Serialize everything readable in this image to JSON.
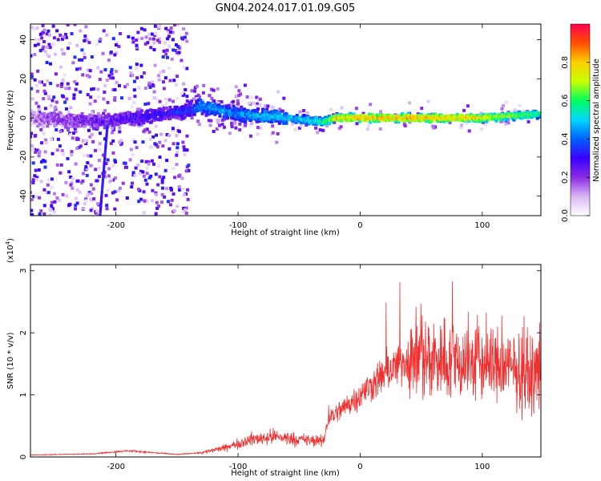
{
  "figure": {
    "title": "GN04.2024.017.01.09.G05"
  },
  "chart_data": [
    {
      "type": "heatmap",
      "xlabel": "Height of straight line (km)",
      "ylabel": "Frequency (Hz)",
      "xlim": [
        -270,
        148
      ],
      "ylim": [
        -50,
        48
      ],
      "xticks": [
        -200,
        -100,
        0,
        100
      ],
      "xtick_labels": [
        "-200",
        "-100",
        "0",
        "100"
      ],
      "yticks": [
        -40,
        -20,
        0,
        20,
        40
      ],
      "ytick_labels": [
        "-40",
        "-20",
        "0",
        "20",
        "40"
      ],
      "colorbar": {
        "label": "Normalized spectral amplitude",
        "range": [
          0,
          1
        ],
        "ticks": [
          0.0,
          0.2,
          0.4,
          0.6,
          0.8
        ],
        "tick_labels": [
          "0.0",
          "0.2",
          "0.4",
          "0.6",
          "0.8"
        ],
        "colors": [
          "#ffffff",
          "#d9b8f5",
          "#8a2be2",
          "#3a00ff",
          "#0060ff",
          "#00d8ff",
          "#00ff60",
          "#c8ff00",
          "#ffd000",
          "#ff5000",
          "#ff0050"
        ]
      },
      "ridge": {
        "x": [
          -270,
          -210,
          -140,
          -130,
          -100,
          -60,
          -30,
          -20,
          0,
          50,
          100,
          148
        ],
        "y": [
          0,
          -2,
          4,
          6,
          2,
          0,
          -2,
          0,
          0,
          0,
          0,
          2
        ],
        "amplitude": [
          0.15,
          0.25,
          0.35,
          0.45,
          0.45,
          0.5,
          0.6,
          0.8,
          0.85,
          0.85,
          0.8,
          0.6
        ]
      },
      "grid": false
    },
    {
      "type": "line",
      "xlabel": "Height of straight line (km)",
      "ylabel": "SNR (10 * v/v)",
      "yscale_label": "(x10",
      "yscale_exp": "4",
      "yscale_close": ")",
      "xlim": [
        -270,
        148
      ],
      "ylim": [
        0,
        3.1
      ],
      "xticks": [
        -200,
        -100,
        0,
        100
      ],
      "xtick_labels": [
        "-200",
        "-100",
        "0",
        "100"
      ],
      "yticks": [
        0,
        1,
        2,
        3
      ],
      "ytick_labels": [
        "0",
        "1",
        "2",
        "3"
      ],
      "envelope": {
        "x": [
          -270,
          -220,
          -190,
          -150,
          -130,
          -110,
          -90,
          -70,
          -50,
          -30,
          -26,
          -20,
          0,
          20,
          40,
          60,
          80,
          100,
          120,
          140,
          148
        ],
        "y": [
          0.03,
          0.05,
          0.1,
          0.04,
          0.07,
          0.15,
          0.28,
          0.33,
          0.28,
          0.25,
          0.65,
          0.7,
          1.0,
          1.35,
          1.6,
          1.6,
          1.55,
          1.5,
          1.45,
          1.3,
          1.4
        ]
      },
      "color": "#f03030",
      "grid": false
    }
  ]
}
